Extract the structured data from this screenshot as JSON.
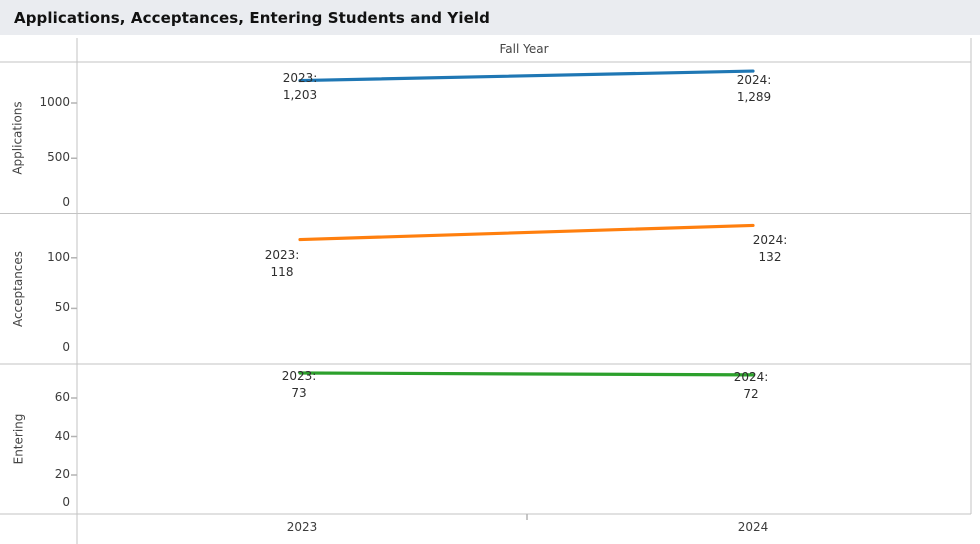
{
  "title": "Applications, Acceptances, Entering Students and Yield",
  "x_axis": {
    "title": "Fall Year",
    "categories": [
      "2023",
      "2024"
    ]
  },
  "chart_data": {
    "type": "line",
    "x": [
      "2023",
      "2024"
    ],
    "x_axis_title": "Fall Year",
    "grid": false,
    "legend": "none",
    "panels": [
      {
        "row_label": "Applications",
        "color": "#1f77b4",
        "values": [
          1203,
          1289
        ],
        "yticks": [
          0,
          500,
          1000
        ],
        "ylim": [
          0,
          1375
        ],
        "point_labels": [
          [
            "2023:",
            "1,203"
          ],
          [
            "2024:",
            "1,289"
          ]
        ]
      },
      {
        "row_label": "Acceptances",
        "color": "#ff7f0e",
        "values": [
          118,
          132
        ],
        "yticks": [
          0,
          50,
          100
        ],
        "ylim": [
          0,
          146
        ],
        "point_labels": [
          [
            "2023:",
            "118"
          ],
          [
            "2024:",
            "132"
          ]
        ]
      },
      {
        "row_label": "Entering",
        "color": "#2ca02c",
        "values": [
          73,
          72
        ],
        "yticks": [
          0,
          20,
          40,
          60
        ],
        "ylim": [
          0,
          78
        ],
        "point_labels": [
          [
            "2023:",
            "73"
          ],
          [
            "2024:",
            "72"
          ]
        ]
      }
    ]
  }
}
